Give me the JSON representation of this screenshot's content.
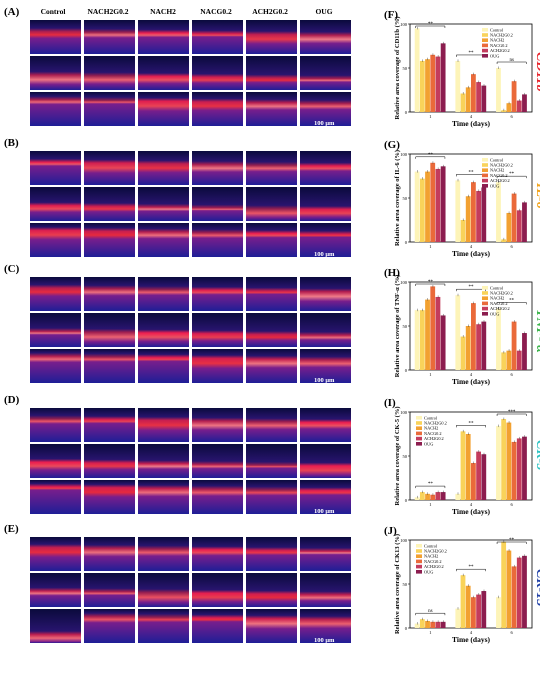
{
  "columns": [
    "Control",
    "NACH2G0.2",
    "NACH2",
    "NACG0.2",
    "ACH2G0.2",
    "OUG"
  ],
  "scale_bar": "100 μm",
  "micro_panels": [
    {
      "label": "(A)",
      "marker": "CD11b",
      "marker_color": "#e8232a"
    },
    {
      "label": "(B)",
      "marker": "IL-6",
      "marker_color": "#f2a31b"
    },
    {
      "label": "(C)",
      "marker": "TNF- α",
      "marker_color": "#3cb44b"
    },
    {
      "label": "(D)",
      "marker": "CK-5",
      "marker_color": "#2ec4c4"
    },
    {
      "label": "(E)",
      "marker": "CK-13",
      "marker_color": "#1f3fa6"
    }
  ],
  "legend": [
    "Control",
    "NACH2G0.2",
    "NACH2",
    "NACG0.2",
    "ACH2G0.2",
    "OUG"
  ],
  "series_colors": [
    "#fdf4b8",
    "#f9d35a",
    "#f2a131",
    "#ea6a3a",
    "#c43c5d",
    "#8c1d4f"
  ],
  "chart_data": [
    {
      "label": "(F)",
      "type": "bar",
      "ylabel": "Relative area coverage of CD11b (%)",
      "xlabel": "Time (days)",
      "categories": [
        "1",
        "4",
        "6"
      ],
      "ymax": 100,
      "sig": [
        "**",
        "**",
        "ns"
      ],
      "values": [
        [
          95,
          58,
          50
        ],
        [
          58,
          21,
          2
        ],
        [
          60,
          28,
          10
        ],
        [
          65,
          43,
          35
        ],
        [
          63,
          34,
          13
        ],
        [
          78,
          30,
          20
        ]
      ]
    },
    {
      "label": "(G)",
      "type": "bar",
      "ylabel": "Relative area coverage of IL-6 (%)",
      "xlabel": "Time (days)",
      "categories": [
        "1",
        "4",
        "6"
      ],
      "ymax": 100,
      "sig": [
        "**",
        "**",
        "**"
      ],
      "values": [
        [
          80,
          70,
          68
        ],
        [
          72,
          25,
          3
        ],
        [
          80,
          52,
          33
        ],
        [
          90,
          68,
          55
        ],
        [
          83,
          58,
          36
        ],
        [
          86,
          62,
          45
        ]
      ]
    },
    {
      "label": "(H)",
      "type": "bar",
      "ylabel": "Relative area coverage of TNF-α (%)",
      "xlabel": "Time (days)",
      "categories": [
        "1",
        "4",
        "6"
      ],
      "ymax": 100,
      "sig": [
        "**",
        "**",
        "**"
      ],
      "values": [
        [
          68,
          85,
          70
        ],
        [
          68,
          38,
          20
        ],
        [
          80,
          50,
          22
        ],
        [
          95,
          76,
          55
        ],
        [
          83,
          52,
          22
        ],
        [
          62,
          55,
          42
        ]
      ]
    },
    {
      "label": "(I)",
      "type": "bar",
      "ylabel": "Relative area coverage of CK-5 (%)",
      "xlabel": "Time (days)",
      "categories": [
        "1",
        "4",
        "6"
      ],
      "ymax": 100,
      "sig": [
        "**",
        "**",
        "***"
      ],
      "values": [
        [
          3,
          7,
          84
        ],
        [
          9,
          78,
          92
        ],
        [
          7,
          75,
          88
        ],
        [
          6,
          42,
          66
        ],
        [
          9,
          55,
          70
        ],
        [
          9,
          52,
          72
        ]
      ]
    },
    {
      "label": "(J)",
      "type": "bar",
      "ylabel": "Relative area coverage of CK13 (%)",
      "xlabel": "Time (days)",
      "categories": [
        "1",
        "4",
        "6"
      ],
      "ymax": 100,
      "sig": [
        "ns",
        "**",
        "**"
      ],
      "values": [
        [
          5,
          22,
          35
        ],
        [
          10,
          60,
          98
        ],
        [
          8,
          48,
          88
        ],
        [
          7,
          35,
          70
        ],
        [
          7,
          38,
          80
        ],
        [
          7,
          42,
          82
        ]
      ]
    }
  ]
}
